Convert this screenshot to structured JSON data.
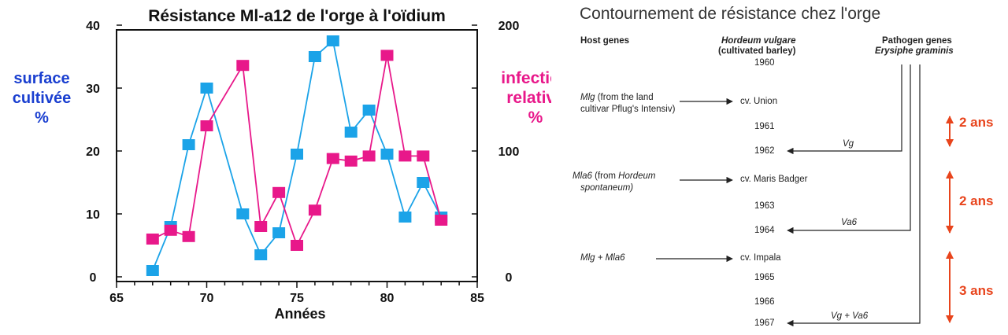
{
  "chart_data": {
    "type": "line",
    "title": "Résistance Ml-a12 de l'orge à l'oïdium",
    "xlabel": "Années",
    "ylabel_left": [
      "surface",
      "cultivée",
      "%"
    ],
    "ylabel_right": [
      "infection",
      "relative",
      "%"
    ],
    "xlim": [
      65,
      85
    ],
    "ylim_left": [
      0,
      40
    ],
    "ylim_right": [
      0,
      200
    ],
    "x_ticks": [
      65,
      70,
      75,
      80,
      85
    ],
    "y_ticks_left": [
      0,
      10,
      20,
      30,
      40
    ],
    "y_ticks_right": [
      0,
      100,
      200
    ],
    "series": [
      {
        "axis": "left",
        "color": "#1ba3e8",
        "x": [
          67,
          68,
          69,
          70,
          72,
          73,
          74,
          75,
          76,
          77,
          78,
          79,
          80,
          81,
          82,
          83
        ],
        "y": [
          1,
          8,
          21,
          30,
          10,
          3.5,
          7,
          19.5,
          35,
          37.5,
          23,
          26.5,
          19.5,
          9.5,
          15,
          9.5
        ]
      },
      {
        "axis": "right",
        "color": "#e8188a",
        "x": [
          67,
          68,
          69,
          70,
          72,
          73,
          74,
          75,
          76,
          77,
          78,
          79,
          80,
          81,
          82,
          83
        ],
        "y": [
          30,
          37,
          32,
          120,
          168,
          40,
          67,
          25,
          53,
          94,
          92,
          96,
          176,
          96,
          96,
          45
        ]
      }
    ]
  },
  "diagram": {
    "title": "Contournement de résistance chez l'orge",
    "header_host": "Host genes",
    "header_hordeum_1": "Hordeum vulgare",
    "header_hordeum_2": "(cultivated barley)",
    "header_pathogen_1": "Pathogen genes",
    "header_pathogen_2": "Erysiphe graminis",
    "host_1_gene": "Mlg",
    "host_1_rest": " (from the land",
    "host_1_line2": "cultivar Pflug's Intensiv)",
    "host_2_gene": "Mla6",
    "host_2_from": " (from ",
    "host_2_species": "Hordeum",
    "host_2_line2": "spontaneum)",
    "host_3": "Mlg + Mla6",
    "cultivar_1": "cv. Union",
    "cultivar_2": "cv. Maris Badger",
    "cultivar_3": "cv. Impala",
    "years": [
      "1960",
      "1961",
      "1962",
      "1963",
      "1964",
      "1965",
      "1966",
      "1967"
    ],
    "pathogen_1": "Vg",
    "pathogen_2": "Va6",
    "pathogen_3": "Vg + Va6",
    "gaps": [
      "2 ans",
      "2 ans",
      "3 ans"
    ],
    "gap_color": "#e8441c"
  }
}
